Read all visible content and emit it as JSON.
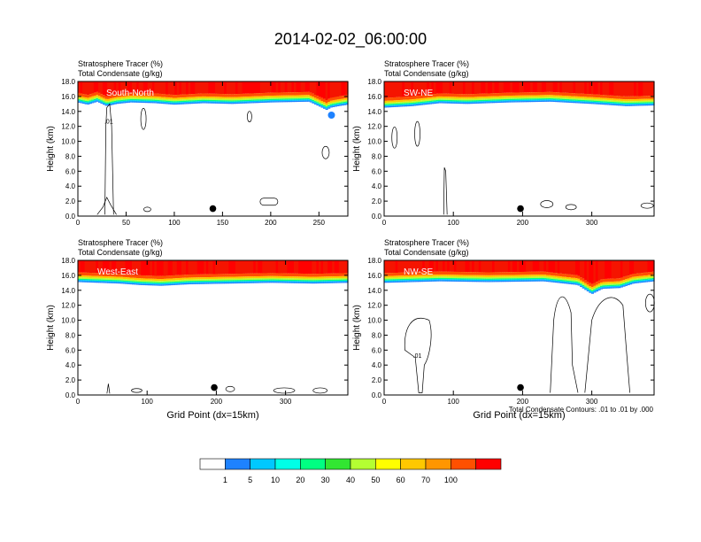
{
  "figure": {
    "title": "2014-02-02_06:00:00",
    "colorbar": {
      "colors": [
        "#ffffff",
        "#1e82ff",
        "#00c8ff",
        "#00ffe6",
        "#00ff82",
        "#32e632",
        "#b4ff32",
        "#ffff00",
        "#ffc800",
        "#ff9600",
        "#ff5000",
        "#ff0000"
      ],
      "labels": [
        "1",
        "5",
        "10",
        "20",
        "30",
        "40",
        "50",
        "60",
        "70",
        "100"
      ]
    },
    "contour_note": "Total Condensate Contours: .01 to .01 by .000"
  },
  "chart_data": [
    {
      "type": "heatmap",
      "panel_label": "South-North",
      "subtitle_1": "Stratosphere Tracer   (%)",
      "subtitle_2": "Total Condensate   (g/kg)",
      "ylabel": "Height (km)",
      "xlabel": "",
      "xlim": [
        0,
        280
      ],
      "ylim": [
        0,
        18
      ],
      "xticks": [
        0,
        50,
        100,
        150,
        200,
        250
      ],
      "yticks": [
        "0.0",
        "2.0",
        "4.0",
        "6.0",
        "8.0",
        "10.0",
        "12.0",
        "14.0",
        "16.0",
        "18.0"
      ],
      "tropopause_km": [
        [
          0,
          15.5
        ],
        [
          10,
          15.2
        ],
        [
          20,
          15.6
        ],
        [
          30,
          15.0
        ],
        [
          40,
          15.3
        ],
        [
          55,
          15.5
        ],
        [
          80,
          15.4
        ],
        [
          100,
          15.2
        ],
        [
          130,
          15.4
        ],
        [
          160,
          15.3
        ],
        [
          200,
          15.5
        ],
        [
          240,
          15.6
        ],
        [
          258,
          14.5
        ],
        [
          262,
          14.8
        ],
        [
          270,
          15.0
        ],
        [
          280,
          15.2
        ]
      ],
      "cross_point_x": 140,
      "contour_label": ".01"
    },
    {
      "type": "heatmap",
      "panel_label": "SW-NE",
      "subtitle_1": "Stratosphere Tracer   (%)",
      "subtitle_2": "Total Condensate   (g/kg)",
      "ylabel": "Height (km)",
      "xlabel": "",
      "xlim": [
        0,
        390
      ],
      "ylim": [
        0,
        18
      ],
      "xticks": [
        0,
        100,
        200,
        300
      ],
      "yticks": [
        "0.0",
        "2.0",
        "4.0",
        "6.0",
        "8.0",
        "10.0",
        "12.0",
        "14.0",
        "16.0",
        "18.0"
      ],
      "tropopause_km": [
        [
          0,
          14.8
        ],
        [
          40,
          15.0
        ],
        [
          80,
          15.4
        ],
        [
          120,
          15.3
        ],
        [
          180,
          15.5
        ],
        [
          240,
          15.6
        ],
        [
          300,
          15.3
        ],
        [
          350,
          15.0
        ],
        [
          390,
          15.1
        ]
      ],
      "cross_point_x": 197
    },
    {
      "type": "heatmap",
      "panel_label": "West-East",
      "subtitle_1": "Stratosphere Tracer   (%)",
      "subtitle_2": "Total Condensate   (g/kg)",
      "ylabel": "Height (km)",
      "xlabel": "Grid Point (dx=15km)",
      "xlim": [
        0,
        390
      ],
      "ylim": [
        0,
        18
      ],
      "xticks": [
        0,
        100,
        200,
        300
      ],
      "yticks": [
        "0.0",
        "2.0",
        "4.0",
        "6.0",
        "8.0",
        "10.0",
        "12.0",
        "14.0",
        "16.0",
        "18.0"
      ],
      "tropopause_km": [
        [
          0,
          15.4
        ],
        [
          60,
          15.2
        ],
        [
          90,
          15.0
        ],
        [
          120,
          14.9
        ],
        [
          160,
          15.1
        ],
        [
          220,
          15.2
        ],
        [
          280,
          15.3
        ],
        [
          340,
          15.2
        ],
        [
          390,
          15.3
        ]
      ],
      "cross_point_x": 197
    },
    {
      "type": "heatmap",
      "panel_label": "NW-SE",
      "subtitle_1": "Stratosphere Tracer   (%)",
      "subtitle_2": "Total Condensate   (g/kg)",
      "ylabel": "Height (km)",
      "xlabel": "Grid Point (dx=15km)",
      "xlim": [
        0,
        390
      ],
      "ylim": [
        0,
        18
      ],
      "xticks": [
        0,
        100,
        200,
        300
      ],
      "yticks": [
        "0.0",
        "2.0",
        "4.0",
        "6.0",
        "8.0",
        "10.0",
        "12.0",
        "14.0",
        "16.0",
        "18.0"
      ],
      "tropopause_km": [
        [
          0,
          15.3
        ],
        [
          80,
          15.5
        ],
        [
          150,
          15.4
        ],
        [
          230,
          15.5
        ],
        [
          280,
          15.0
        ],
        [
          300,
          13.8
        ],
        [
          315,
          14.5
        ],
        [
          340,
          14.6
        ],
        [
          360,
          15.2
        ],
        [
          390,
          15.5
        ]
      ],
      "cross_point_x": 197,
      "contour_label": ".01"
    }
  ]
}
